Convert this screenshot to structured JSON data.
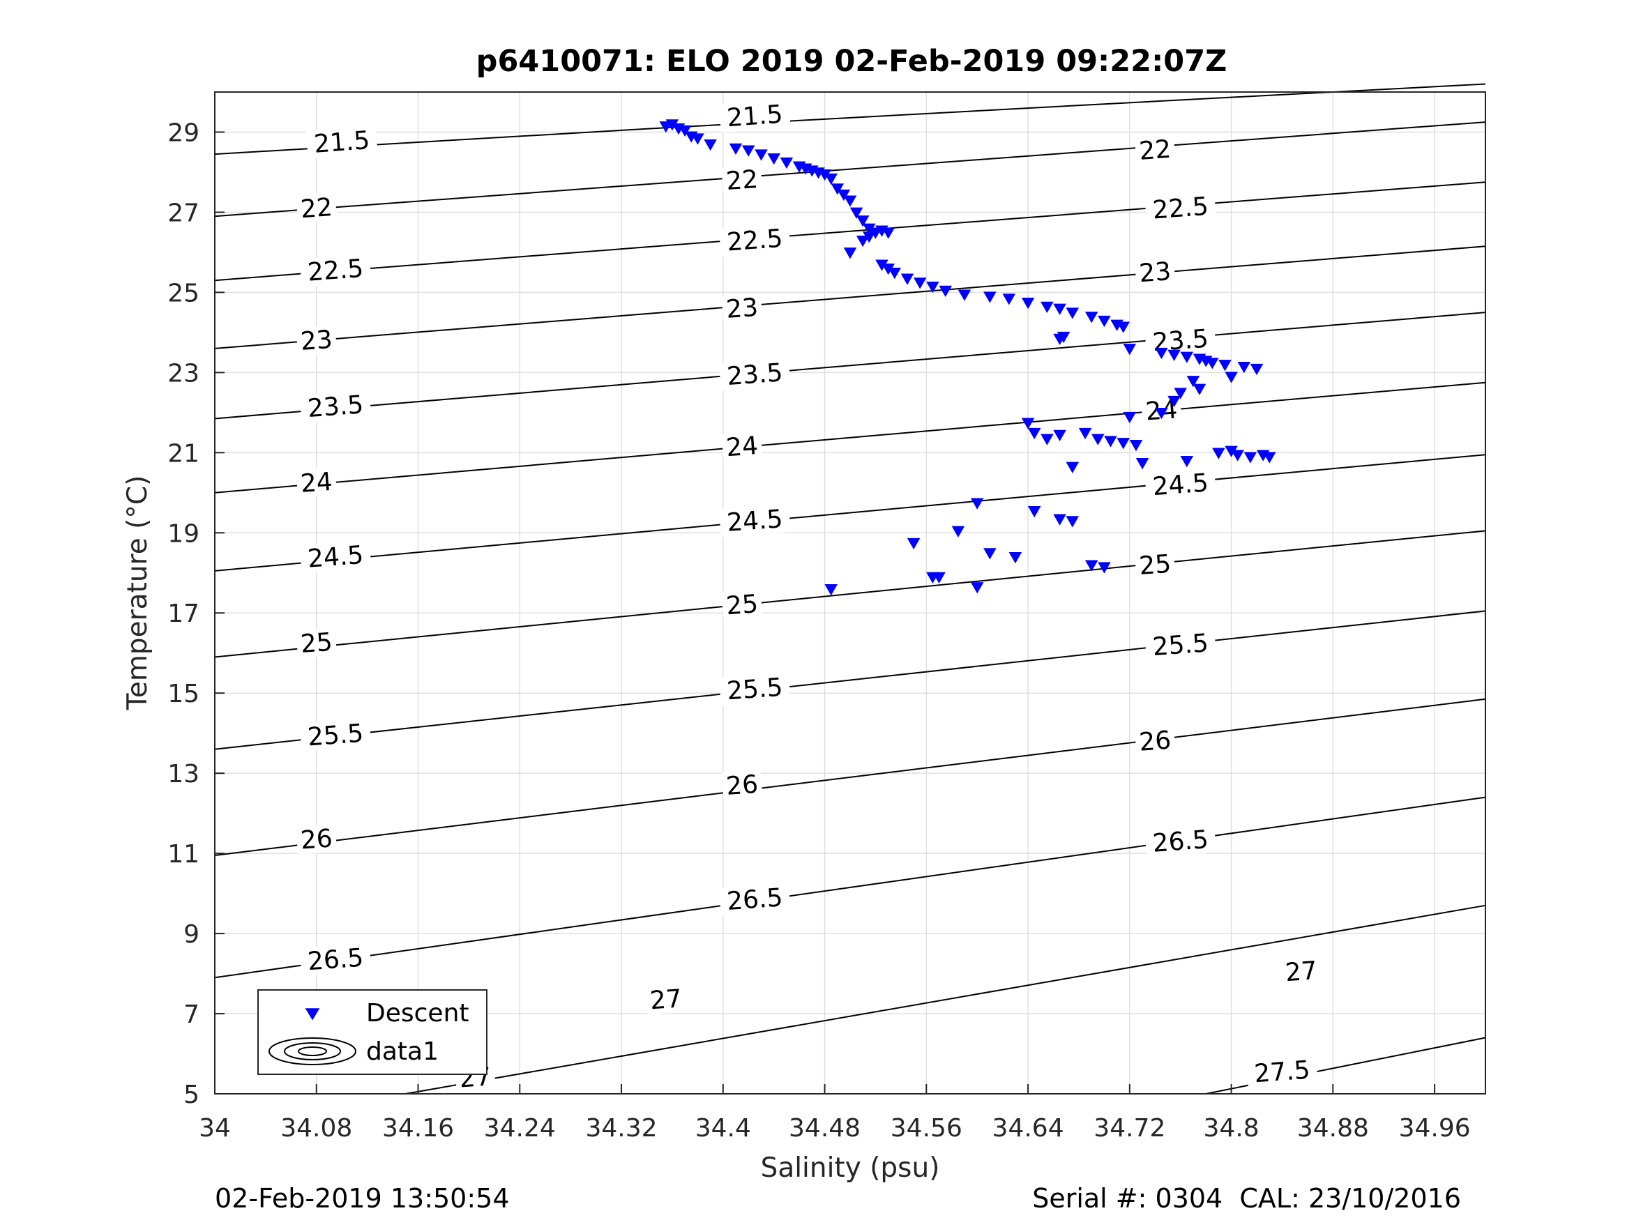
{
  "chart_data": {
    "type": "scatter",
    "title": "p6410071: ELO 2019 02-Feb-2019 09:22:07Z",
    "xlabel": "Salinity (psu)",
    "ylabel": "Temperature (°C)",
    "xlim": [
      34,
      35.0
    ],
    "ylim": [
      5,
      30
    ],
    "xticks": [
      34,
      34.08,
      34.16,
      34.24,
      34.32,
      34.4,
      34.48,
      34.56,
      34.64,
      34.72,
      34.8,
      34.88,
      34.96
    ],
    "xtick_labels": [
      "34",
      "34.08",
      "34.16",
      "34.24",
      "34.32",
      "34.4",
      "34.48",
      "34.56",
      "34.64",
      "34.72",
      "34.8",
      "34.88",
      "34.96"
    ],
    "yticks": [
      5,
      7,
      9,
      11,
      13,
      15,
      17,
      19,
      21,
      23,
      25,
      27,
      29
    ],
    "ytick_labels": [
      "5",
      "7",
      "9",
      "11",
      "13",
      "15",
      "17",
      "19",
      "21",
      "23",
      "25",
      "27",
      "29"
    ],
    "grid": true,
    "legend_position": "bottom-left",
    "legend": [
      {
        "label": "Descent",
        "marker": "triangle-down",
        "color": "#0000ff"
      },
      {
        "label": "data1",
        "marker": "contour",
        "color": "#000000"
      }
    ],
    "contours": [
      {
        "level": 21.5,
        "label": "21.5",
        "points": [
          [
            34.0,
            28.45
          ],
          [
            34.35,
            29.1
          ],
          [
            34.7,
            29.7
          ],
          [
            35.0,
            30.2
          ]
        ]
      },
      {
        "level": 22,
        "label": "22",
        "points": [
          [
            34.0,
            26.9
          ],
          [
            35.0,
            29.25
          ]
        ]
      },
      {
        "level": 22.5,
        "label": "22.5",
        "points": [
          [
            34.0,
            25.3
          ],
          [
            35.0,
            27.75
          ]
        ]
      },
      {
        "level": 23,
        "label": "23",
        "points": [
          [
            34.0,
            23.6
          ],
          [
            35.0,
            26.15
          ]
        ]
      },
      {
        "level": 23.5,
        "label": "23.5",
        "points": [
          [
            34.0,
            21.85
          ],
          [
            35.0,
            24.5
          ]
        ]
      },
      {
        "level": 24,
        "label": "24",
        "points": [
          [
            34.0,
            20.0
          ],
          [
            35.0,
            22.75
          ]
        ]
      },
      {
        "level": 24.5,
        "label": "24.5",
        "points": [
          [
            34.0,
            18.05
          ],
          [
            35.0,
            20.95
          ]
        ]
      },
      {
        "level": 25,
        "label": "25",
        "points": [
          [
            34.0,
            15.9
          ],
          [
            35.0,
            19.05
          ]
        ]
      },
      {
        "level": 25.5,
        "label": "25.5",
        "points": [
          [
            34.0,
            13.6
          ],
          [
            35.0,
            17.05
          ]
        ]
      },
      {
        "level": 26,
        "label": "26",
        "points": [
          [
            34.0,
            10.95
          ],
          [
            35.0,
            14.85
          ]
        ]
      },
      {
        "level": 26.5,
        "label": "26.5",
        "points": [
          [
            34.0,
            7.9
          ],
          [
            35.0,
            12.4
          ]
        ]
      },
      {
        "level": 27,
        "label": "27",
        "points": [
          [
            34.15,
            5.0
          ],
          [
            35.0,
            9.7
          ]
        ]
      },
      {
        "level": 27.5,
        "label": "27.5",
        "points": [
          [
            34.78,
            5.0
          ],
          [
            35.0,
            6.4
          ]
        ]
      }
    ],
    "contour_labels": [
      {
        "text": "21.5",
        "x": 34.1,
        "y": 28.75
      },
      {
        "text": "21.5",
        "x": 34.425,
        "y": 29.4
      },
      {
        "text": "22",
        "x": 34.08,
        "y": 27.1
      },
      {
        "text": "22",
        "x": 34.415,
        "y": 27.8
      },
      {
        "text": "22",
        "x": 34.74,
        "y": 28.55
      },
      {
        "text": "22.5",
        "x": 34.095,
        "y": 25.55
      },
      {
        "text": "22.5",
        "x": 34.425,
        "y": 26.3
      },
      {
        "text": "22.5",
        "x": 34.76,
        "y": 27.1
      },
      {
        "text": "23",
        "x": 34.08,
        "y": 23.8
      },
      {
        "text": "23",
        "x": 34.415,
        "y": 24.6
      },
      {
        "text": "23",
        "x": 34.74,
        "y": 25.5
      },
      {
        "text": "23.5",
        "x": 34.095,
        "y": 22.15
      },
      {
        "text": "23.5",
        "x": 34.425,
        "y": 22.95
      },
      {
        "text": "23.5",
        "x": 34.76,
        "y": 23.8
      },
      {
        "text": "24",
        "x": 34.08,
        "y": 20.25
      },
      {
        "text": "24",
        "x": 34.415,
        "y": 21.15
      },
      {
        "text": "24",
        "x": 34.745,
        "y": 22.05
      },
      {
        "text": "24.5",
        "x": 34.095,
        "y": 18.4
      },
      {
        "text": "24.5",
        "x": 34.425,
        "y": 19.3
      },
      {
        "text": "24.5",
        "x": 34.76,
        "y": 20.2
      },
      {
        "text": "25",
        "x": 34.08,
        "y": 16.25
      },
      {
        "text": "25",
        "x": 34.415,
        "y": 17.2
      },
      {
        "text": "25",
        "x": 34.74,
        "y": 18.2
      },
      {
        "text": "25.5",
        "x": 34.095,
        "y": 13.95
      },
      {
        "text": "25.5",
        "x": 34.425,
        "y": 15.1
      },
      {
        "text": "25.5",
        "x": 34.76,
        "y": 16.2
      },
      {
        "text": "26",
        "x": 34.08,
        "y": 11.35
      },
      {
        "text": "26",
        "x": 34.415,
        "y": 12.7
      },
      {
        "text": "26",
        "x": 34.74,
        "y": 13.8
      },
      {
        "text": "26.5",
        "x": 34.095,
        "y": 8.35
      },
      {
        "text": "26.5",
        "x": 34.425,
        "y": 9.85
      },
      {
        "text": "26.5",
        "x": 34.76,
        "y": 11.3
      },
      {
        "text": "27",
        "x": 34.205,
        "y": 5.4
      },
      {
        "text": "27",
        "x": 34.355,
        "y": 7.35
      },
      {
        "text": "27",
        "x": 34.855,
        "y": 8.05
      },
      {
        "text": "27.5",
        "x": 34.84,
        "y": 5.55
      }
    ],
    "series": [
      {
        "name": "Descent",
        "color": "#0000ff",
        "marker": "triangle-down",
        "x": [
          34.355,
          34.36,
          34.365,
          34.37,
          34.375,
          34.38,
          34.39,
          34.41,
          34.42,
          34.43,
          34.44,
          34.45,
          34.46,
          34.465,
          34.47,
          34.475,
          34.48,
          34.485,
          34.49,
          34.495,
          34.5,
          34.505,
          34.51,
          34.515,
          34.52,
          34.525,
          34.53,
          34.515,
          34.51,
          34.5,
          34.525,
          34.53,
          34.535,
          34.545,
          34.555,
          34.565,
          34.575,
          34.59,
          34.61,
          34.625,
          34.64,
          34.655,
          34.665,
          34.675,
          34.69,
          34.7,
          34.71,
          34.715,
          34.665,
          34.668,
          34.72,
          34.745,
          34.755,
          34.765,
          34.775,
          34.78,
          34.785,
          34.795,
          34.81,
          34.82,
          34.8,
          34.77,
          34.775,
          34.76,
          34.755,
          34.745,
          34.72,
          34.64,
          34.645,
          34.655,
          34.665,
          34.685,
          34.695,
          34.705,
          34.715,
          34.725,
          34.73,
          34.765,
          34.79,
          34.8,
          34.805,
          34.815,
          34.825,
          34.83,
          34.675,
          34.6,
          34.645,
          34.55,
          34.57,
          34.585,
          34.61,
          34.63,
          34.565,
          34.6,
          34.665,
          34.675,
          34.69,
          34.7,
          34.485
        ],
        "y": [
          29.15,
          29.2,
          29.1,
          29.05,
          28.9,
          28.85,
          28.7,
          28.6,
          28.55,
          28.45,
          28.35,
          28.25,
          28.15,
          28.1,
          28.05,
          28.0,
          27.95,
          27.85,
          27.6,
          27.45,
          27.3,
          27.0,
          26.8,
          26.6,
          26.5,
          26.55,
          26.5,
          26.4,
          26.3,
          26.0,
          25.7,
          25.6,
          25.5,
          25.35,
          25.25,
          25.15,
          25.05,
          24.95,
          24.9,
          24.85,
          24.75,
          24.65,
          24.6,
          24.5,
          24.4,
          24.3,
          24.2,
          24.15,
          23.85,
          23.9,
          23.6,
          23.5,
          23.45,
          23.4,
          23.35,
          23.3,
          23.25,
          23.2,
          23.15,
          23.1,
          22.9,
          22.8,
          22.6,
          22.5,
          22.3,
          22.0,
          21.9,
          21.75,
          21.5,
          21.35,
          21.45,
          21.5,
          21.35,
          21.3,
          21.25,
          21.2,
          20.75,
          20.8,
          21.0,
          21.05,
          20.95,
          20.9,
          20.95,
          20.9,
          20.65,
          19.75,
          19.55,
          18.75,
          17.9,
          19.05,
          18.5,
          18.4,
          17.9,
          17.65,
          19.35,
          19.3,
          18.2,
          18.15,
          17.6
        ]
      }
    ]
  },
  "footer": {
    "left": "02-Feb-2019 13:50:54",
    "right": "Serial #: 0304  CAL: 23/10/2016"
  }
}
